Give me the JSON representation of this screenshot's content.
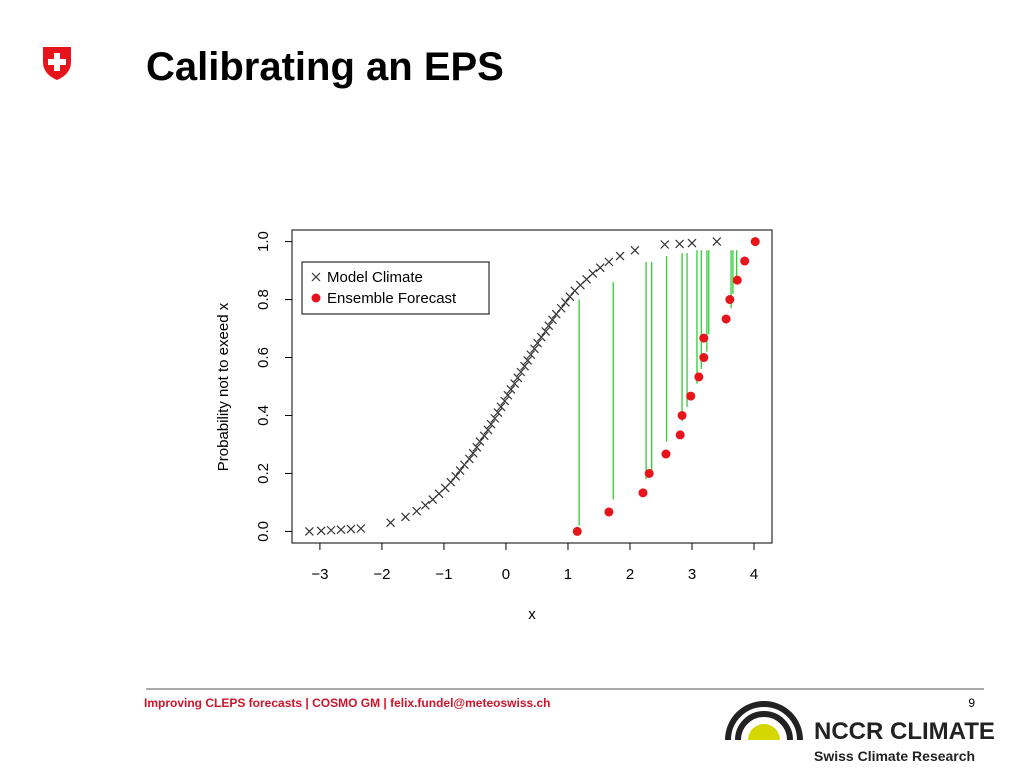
{
  "header": {
    "title": "Calibrating an EPS"
  },
  "chart_data": {
    "type": "scatter",
    "xlabel": "x",
    "ylabel": "Probability not to exeed x",
    "xlim": [
      -3.45,
      4.29
    ],
    "ylim": [
      -0.04,
      1.04
    ],
    "xticks": [
      {
        "value": -3,
        "label": "−3"
      },
      {
        "value": -2,
        "label": "−2"
      },
      {
        "value": -1,
        "label": "−1"
      },
      0,
      1,
      2,
      3,
      4
    ],
    "yticks": [
      {
        "value": 0,
        "label": "0.0"
      },
      0.2,
      0.4,
      0.6,
      0.8,
      {
        "value": 1,
        "label": "1.0"
      }
    ],
    "legend": "top-left",
    "series": [
      {
        "name": "Model Climate",
        "marker": "x",
        "color": "#333333",
        "x": [
          -3.17,
          -2.98,
          -2.82,
          -2.66,
          -2.5,
          -2.34,
          -1.86,
          -1.62,
          -1.44,
          -1.3,
          -1.18,
          -1.08,
          -0.98,
          -0.89,
          -0.81,
          -0.74,
          -0.67,
          -0.59,
          -0.53,
          -0.47,
          -0.42,
          -0.35,
          -0.29,
          -0.24,
          -0.18,
          -0.13,
          -0.08,
          -0.02,
          0.03,
          0.08,
          0.14,
          0.19,
          0.24,
          0.3,
          0.35,
          0.4,
          0.46,
          0.51,
          0.57,
          0.64,
          0.69,
          0.75,
          0.81,
          0.89,
          0.96,
          1.03,
          1.11,
          1.2,
          1.3,
          1.4,
          1.52,
          1.66,
          1.84,
          2.08,
          2.56,
          2.8,
          3.0,
          3.4
        ],
        "values": [
          0,
          0.002,
          0.004,
          0.006,
          0.008,
          0.01,
          0.03,
          0.05,
          0.07,
          0.09,
          0.11,
          0.13,
          0.15,
          0.17,
          0.19,
          0.21,
          0.23,
          0.25,
          0.27,
          0.29,
          0.31,
          0.33,
          0.35,
          0.37,
          0.39,
          0.41,
          0.43,
          0.45,
          0.47,
          0.49,
          0.51,
          0.53,
          0.55,
          0.57,
          0.59,
          0.61,
          0.63,
          0.65,
          0.67,
          0.69,
          0.71,
          0.73,
          0.75,
          0.77,
          0.79,
          0.81,
          0.83,
          0.85,
          0.87,
          0.89,
          0.91,
          0.93,
          0.95,
          0.97,
          0.99,
          0.992,
          0.995,
          1.0
        ]
      },
      {
        "name": "Ensemble Forecast",
        "marker": "circle",
        "color": "#e8141b",
        "x": [
          1.15,
          1.66,
          2.21,
          2.31,
          2.58,
          2.81,
          2.84,
          2.98,
          3.11,
          3.19,
          3.19,
          3.55,
          3.61,
          3.73,
          3.85,
          4.02
        ],
        "values": [
          0,
          0.067,
          0.133,
          0.2,
          0.267,
          0.333,
          0.4,
          0.467,
          0.533,
          0.6,
          0.667,
          0.733,
          0.8,
          0.867,
          0.933,
          1.0
        ]
      }
    ],
    "lines": {
      "color": "#33cc33",
      "x": [
        1.18,
        1.73,
        2.26,
        2.35,
        2.59,
        2.84,
        2.92,
        3.08,
        3.15,
        3.24,
        3.27,
        3.63,
        3.66,
        3.72
      ],
      "y0": [
        0.02,
        0.11,
        0.18,
        0.21,
        0.31,
        0.38,
        0.43,
        0.51,
        0.56,
        0.62,
        0.68,
        0.77,
        0.82,
        0.88
      ],
      "y1": [
        0.8,
        0.86,
        0.93,
        0.93,
        0.95,
        0.96,
        0.96,
        0.97,
        0.97,
        0.97,
        0.97,
        0.97,
        0.97,
        0.97
      ]
    }
  },
  "footer": {
    "text": "Improving CLEPS forecasts | COSMO GM | felix.fundel@meteoswiss.ch",
    "page": "9",
    "logo": "NCCR CLIMATE",
    "logo_sub": "Swiss Climate Research"
  }
}
